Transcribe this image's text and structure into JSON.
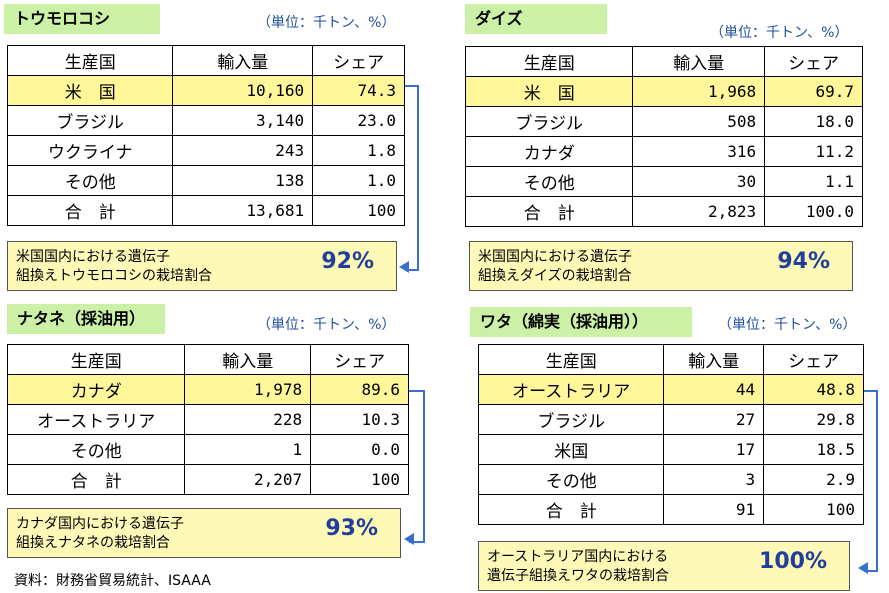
{
  "unit_label": "（単位：千トン、%）",
  "columns": [
    "生産国",
    "輸入量",
    "シェア"
  ],
  "panels": [
    {
      "title": "トウモロコシ",
      "rows": [
        {
          "country": "米　国",
          "amount": "10,160",
          "share": "74.3"
        },
        {
          "country": "ブラジル",
          "amount": "3,140",
          "share": "23.0"
        },
        {
          "country": "ウクライナ",
          "amount": "243",
          "share": "1.8"
        },
        {
          "country": "その他",
          "amount": "138",
          "share": "1.0"
        },
        {
          "country": "合　計",
          "amount": "13,681",
          "share": "100"
        }
      ],
      "note_text": "米国国内における遺伝子\n組換えトウモロコシの栽培割合",
      "note_pct": "92%"
    },
    {
      "title": "ダイズ",
      "rows": [
        {
          "country": "米　国",
          "amount": "1,968",
          "share": "69.7"
        },
        {
          "country": "ブラジル",
          "amount": "508",
          "share": "18.0"
        },
        {
          "country": "カナダ",
          "amount": "316",
          "share": "11.2"
        },
        {
          "country": "その他",
          "amount": "30",
          "share": "1.1"
        },
        {
          "country": "合　計",
          "amount": "2,823",
          "share": "100.0"
        }
      ],
      "note_text": "米国国内における遺伝子\n組換えダイズの栽培割合",
      "note_pct": "94%"
    },
    {
      "title": "ナタネ（採油用）",
      "rows": [
        {
          "country": "カナダ",
          "amount": "1,978",
          "share": "89.6"
        },
        {
          "country": "オーストラリア",
          "amount": "228",
          "share": "10.3"
        },
        {
          "country": "その他",
          "amount": "1",
          "share": "0.0"
        },
        {
          "country": "合　計",
          "amount": "2,207",
          "share": "100"
        }
      ],
      "note_text": "カナダ国内における遺伝子\n組換えナタネの栽培割合",
      "note_pct": "93%"
    },
    {
      "title": "ワタ（綿実（採油用））",
      "rows": [
        {
          "country": "オーストラリア",
          "amount": "44",
          "share": "48.8"
        },
        {
          "country": "ブラジル",
          "amount": "27",
          "share": "29.8"
        },
        {
          "country": "米国",
          "amount": "17",
          "share": "18.5"
        },
        {
          "country": "その他",
          "amount": "3",
          "share": "2.9"
        },
        {
          "country": "合　計",
          "amount": "91",
          "share": "100"
        }
      ],
      "note_text": "オーストラリア国内における\n遺伝子組換えワタの栽培割合",
      "note_pct": "100%"
    }
  ],
  "source": "資料：財務省貿易統計、ISAAA",
  "colors": {
    "title_bg": "#ccf0a6",
    "highlight_row": "#fff799",
    "note_bg": "#fff9b8",
    "accent_blue": "#3a6ecf"
  }
}
